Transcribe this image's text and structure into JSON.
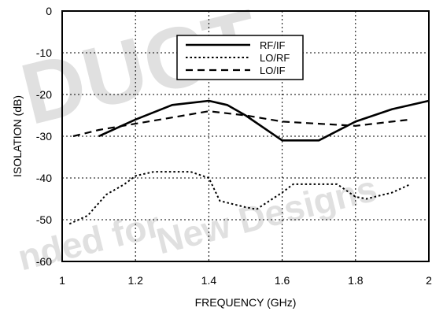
{
  "watermark": {
    "lines": [
      "DUCT",
      "New Designs",
      "nded for"
    ]
  },
  "chart_data": {
    "type": "line",
    "xlabel": "FREQUENCY (GHz)",
    "ylabel": "ISOLATION (dB)",
    "xlim": [
      1,
      2
    ],
    "ylim": [
      -60,
      0
    ],
    "xticks": [
      "1",
      "1.2",
      "1.4",
      "1.6",
      "1.8",
      "2"
    ],
    "yticks": [
      "0",
      "-10",
      "-20",
      "-30",
      "-40",
      "-50",
      "-60"
    ],
    "grid": true,
    "legend_position": "top-center",
    "series": [
      {
        "name": "RF/IF",
        "style": "solid",
        "x": [
          1.1,
          1.2,
          1.3,
          1.4,
          1.45,
          1.5,
          1.6,
          1.7,
          1.8,
          1.9,
          2.0
        ],
        "y": [
          -30,
          -26,
          -22.5,
          -21.5,
          -22.5,
          -25,
          -31,
          -31,
          -26.5,
          -23.5,
          -21.5
        ]
      },
      {
        "name": "LO/RF",
        "style": "dotted",
        "x": [
          1.02,
          1.07,
          1.12,
          1.17,
          1.2,
          1.25,
          1.3,
          1.35,
          1.4,
          1.43,
          1.5,
          1.53,
          1.6,
          1.63,
          1.7,
          1.75,
          1.8,
          1.83,
          1.9,
          1.95
        ],
        "y": [
          -51,
          -49,
          -44,
          -41.5,
          -39.5,
          -38.5,
          -38.5,
          -38.5,
          -40,
          -45.5,
          -47,
          -47.5,
          -43.5,
          -41.5,
          -41.5,
          -41.5,
          -44.5,
          -45,
          -43.5,
          -41.5
        ]
      },
      {
        "name": "LO/IF",
        "style": "dashed",
        "x": [
          1.03,
          1.1,
          1.2,
          1.3,
          1.4,
          1.5,
          1.6,
          1.7,
          1.8,
          1.9,
          1.95
        ],
        "y": [
          -30,
          -28.5,
          -27,
          -25.5,
          -24,
          -25,
          -26.5,
          -27,
          -27.5,
          -26.5,
          -26
        ]
      }
    ]
  }
}
